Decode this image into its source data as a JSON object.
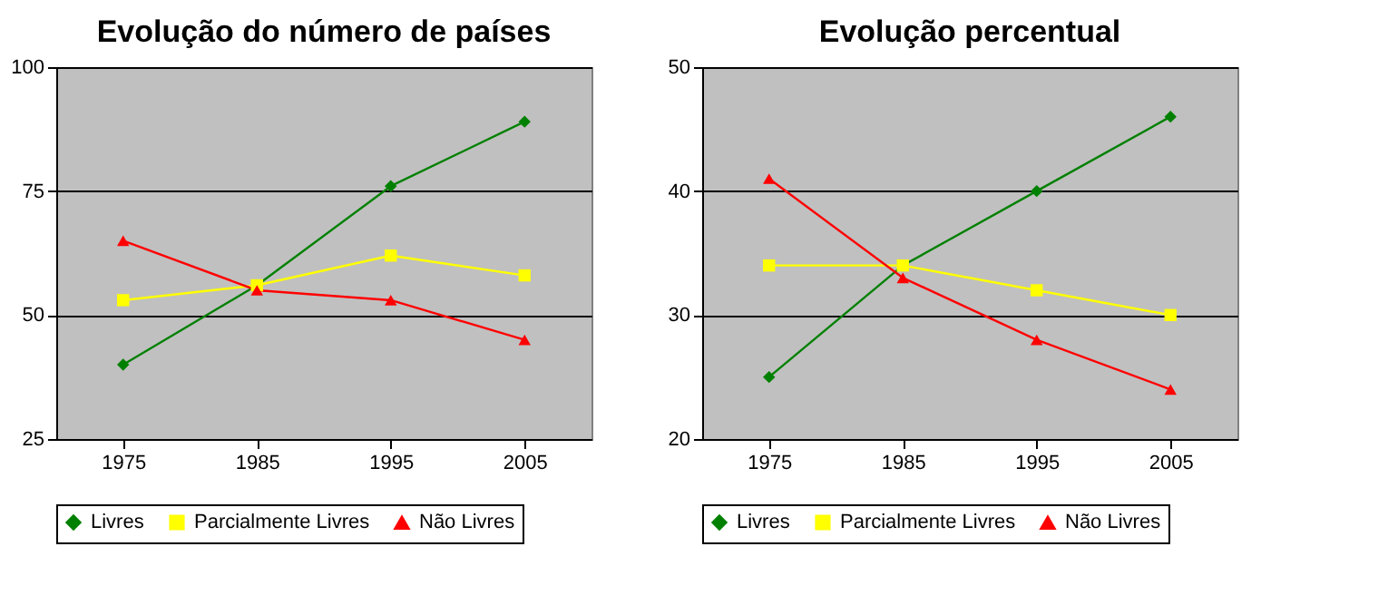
{
  "chart_data": [
    {
      "type": "line",
      "title": "Evolução do número de países",
      "categories": [
        "1975",
        "1985",
        "1995",
        "2005"
      ],
      "ylim": [
        25,
        100
      ],
      "yticks": [
        25,
        50,
        75,
        100
      ],
      "grid": "y",
      "legend": "bottom",
      "series": [
        {
          "name": "Livres",
          "color": "#008000",
          "marker": "diamond",
          "values": [
            40,
            56,
            76,
            89
          ]
        },
        {
          "name": "Parcialmente Livres",
          "color": "#ffff00",
          "marker": "square",
          "values": [
            53,
            56,
            62,
            58
          ]
        },
        {
          "name": "Não Livres",
          "color": "#ff0000",
          "marker": "triangle",
          "values": [
            65,
            55,
            53,
            45
          ]
        }
      ]
    },
    {
      "type": "line",
      "title": "Evolução percentual",
      "categories": [
        "1975",
        "1985",
        "1995",
        "2005"
      ],
      "ylim": [
        20,
        50
      ],
      "yticks": [
        20,
        30,
        40,
        50
      ],
      "grid": "y",
      "legend": "bottom",
      "series": [
        {
          "name": "Livres",
          "color": "#008000",
          "marker": "diamond",
          "values": [
            25,
            34,
            40,
            46
          ]
        },
        {
          "name": "Parcialmente Livres",
          "color": "#ffff00",
          "marker": "square",
          "values": [
            34,
            34,
            32,
            30
          ]
        },
        {
          "name": "Não Livres",
          "color": "#ff0000",
          "marker": "triangle",
          "values": [
            41,
            33,
            28,
            24
          ]
        }
      ]
    }
  ]
}
